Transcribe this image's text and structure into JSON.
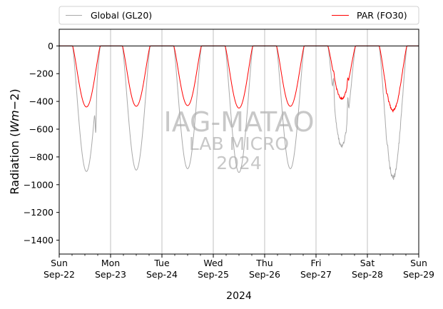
{
  "chart_data": {
    "type": "line",
    "ylabel_text": "Radiation (",
    "ylabel_math": "Wm",
    "ylabel_tail": "−2)",
    "xlabel": "2024",
    "ylim": [
      -1500,
      120
    ],
    "yticks": [
      0,
      -200,
      -400,
      -600,
      -800,
      -1000,
      -1200,
      -1400
    ],
    "ytick_labels": [
      "0",
      "−200",
      "−400",
      "−600",
      "−800",
      "−1000",
      "−1200",
      "−1400"
    ],
    "xlim": [
      0,
      7
    ],
    "xticks": [
      {
        "pos": 0,
        "day": "Sun",
        "date": "Sep-22"
      },
      {
        "pos": 1,
        "day": "Mon",
        "date": "Sep-23"
      },
      {
        "pos": 2,
        "day": "Tue",
        "date": "Sep-24"
      },
      {
        "pos": 3,
        "day": "Wed",
        "date": "Sep-25"
      },
      {
        "pos": 4,
        "day": "Thu",
        "date": "Sep-26"
      },
      {
        "pos": 5,
        "day": "Fri",
        "date": "Sep-27"
      },
      {
        "pos": 6,
        "day": "Sat",
        "date": "Sep-28"
      },
      {
        "pos": 7,
        "day": "Sun",
        "date": "Sep-29"
      }
    ],
    "grid": "x-major",
    "legend_placement": "top-outside",
    "watermark": [
      "IAG-MATAO",
      "LAB MICRO",
      "2024"
    ],
    "series": [
      {
        "name": "Global (GL20)",
        "color": "#a9a9a9",
        "days": [
          {
            "noon": 0.53,
            "peak": -905,
            "dip": [
              0.71,
              -630
            ]
          },
          {
            "noon": 1.5,
            "peak": -895
          },
          {
            "noon": 2.5,
            "peak": -885
          },
          {
            "noon": 3.5,
            "peak": -912
          },
          {
            "noon": 4.5,
            "peak": -885
          },
          {
            "noon": 5.5,
            "peak": -720,
            "dip": [
              5.34,
              -230
            ],
            "dip2": [
              5.62,
              -360
            ]
          },
          {
            "noon": 6.5,
            "peak": -950,
            "dip": [
              6.38,
              -700
            ]
          }
        ]
      },
      {
        "name": "PAR (FO30)",
        "color": "#ff0000",
        "days": [
          {
            "noon": 0.53,
            "peak": -440
          },
          {
            "noon": 1.5,
            "peak": -435
          },
          {
            "noon": 2.5,
            "peak": -430
          },
          {
            "noon": 3.5,
            "peak": -448
          },
          {
            "noon": 4.5,
            "peak": -435
          },
          {
            "noon": 5.5,
            "peak": -380,
            "dip": [
              5.34,
              -180
            ],
            "dip2": [
              5.62,
              -230
            ]
          },
          {
            "noon": 6.5,
            "peak": -465,
            "dip": [
              6.38,
              -340
            ]
          }
        ]
      }
    ]
  }
}
